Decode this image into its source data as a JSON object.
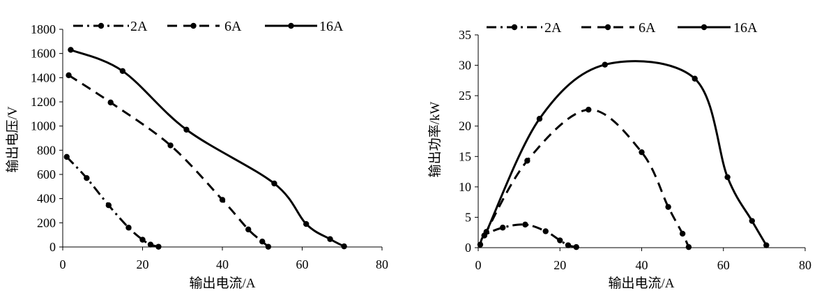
{
  "chart_data": [
    {
      "type": "line",
      "xlabel": "输出电流/A",
      "ylabel": "输出电压/V",
      "xlim": [
        0,
        80
      ],
      "ylim": [
        0,
        1800
      ],
      "xticks": [
        "0",
        "20",
        "40",
        "60",
        "80"
      ],
      "yticks": [
        "0",
        "200",
        "400",
        "600",
        "800",
        "1000",
        "1200",
        "1400",
        "1600",
        "1800"
      ],
      "grid": false,
      "legend": "top",
      "series": [
        {
          "name": "2A",
          "style": "dashdot",
          "points": [
            [
              1,
              745
            ],
            [
              6,
              570
            ],
            [
              11.5,
              345
            ],
            [
              16.5,
              160
            ],
            [
              20,
              60
            ],
            [
              22,
              20
            ],
            [
              24,
              2
            ]
          ]
        },
        {
          "name": "6A",
          "style": "dashed",
          "points": [
            [
              1.5,
              1420
            ],
            [
              12,
              1195
            ],
            [
              27,
              840
            ],
            [
              40,
              390
            ],
            [
              46.5,
              145
            ],
            [
              50,
              45
            ],
            [
              51.5,
              2
            ]
          ]
        },
        {
          "name": "16A",
          "style": "solid",
          "points": [
            [
              2,
              1630
            ],
            [
              15,
              1455
            ],
            [
              31,
              970
            ],
            [
              53,
              525
            ],
            [
              61,
              190
            ],
            [
              67,
              65
            ],
            [
              70.5,
              5
            ]
          ]
        }
      ]
    },
    {
      "type": "line",
      "xlabel": "输出电流/A",
      "ylabel": "输出功率/kW",
      "xlim": [
        0,
        80
      ],
      "ylim": [
        0,
        35
      ],
      "xticks": [
        "0",
        "20",
        "40",
        "60",
        "80"
      ],
      "yticks": [
        "0",
        "5",
        "10",
        "15",
        "20",
        "25",
        "30",
        "35"
      ],
      "grid": false,
      "legend": "top",
      "series": [
        {
          "name": "2A",
          "style": "dashdot",
          "points": [
            [
              0.5,
              0.5
            ],
            [
              1.5,
              2
            ],
            [
              6,
              3.3
            ],
            [
              11.5,
              3.8
            ],
            [
              16.5,
              2.7
            ],
            [
              20,
              1.2
            ],
            [
              22,
              0.4
            ],
            [
              24,
              0.1
            ]
          ]
        },
        {
          "name": "6A",
          "style": "dashed",
          "points": [
            [
              1.5,
              2
            ],
            [
              12,
              14.3
            ],
            [
              27,
              22.7
            ],
            [
              40,
              15.7
            ],
            [
              46.5,
              6.7
            ],
            [
              50,
              2.3
            ],
            [
              51.5,
              0.1
            ]
          ]
        },
        {
          "name": "16A",
          "style": "solid",
          "points": [
            [
              2,
              2.6
            ],
            [
              15,
              21.2
            ],
            [
              31,
              30.1
            ],
            [
              53,
              27.8
            ],
            [
              61,
              11.6
            ],
            [
              67,
              4.4
            ],
            [
              70.5,
              0.4
            ]
          ]
        }
      ]
    }
  ]
}
